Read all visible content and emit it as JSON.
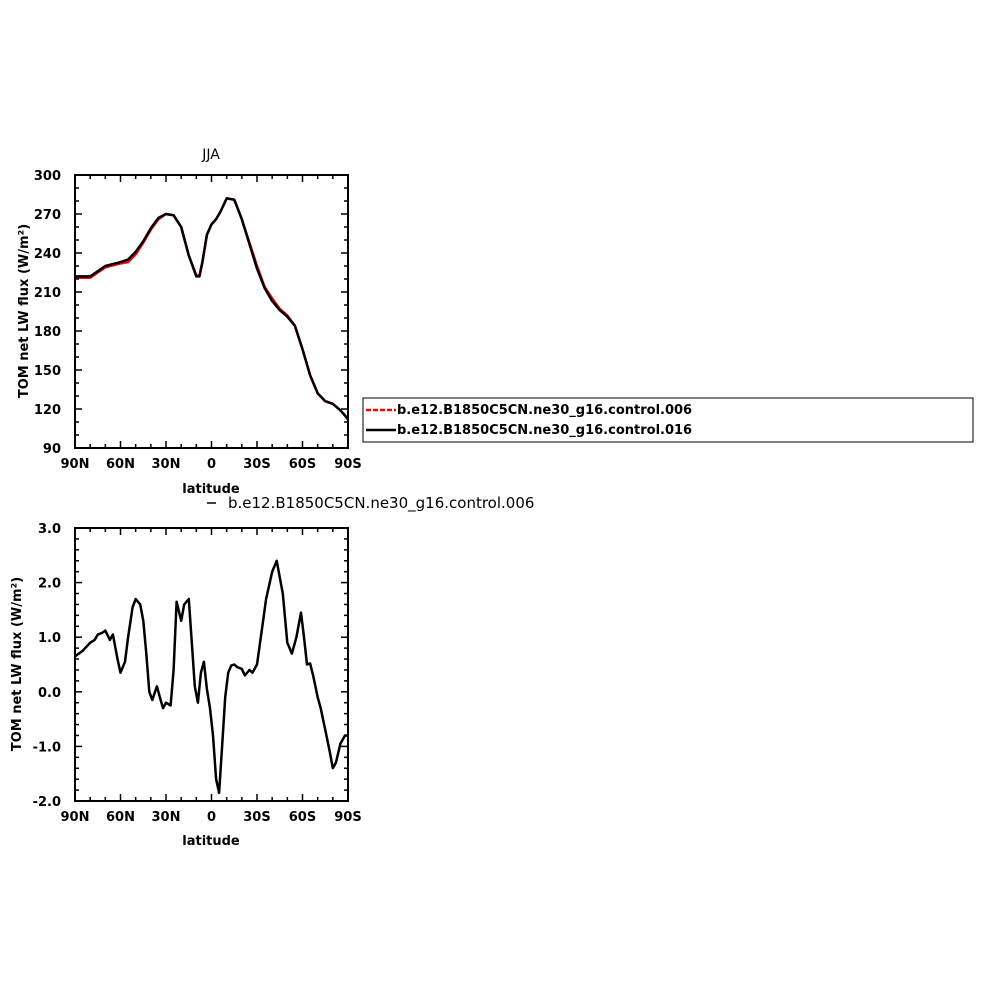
{
  "chart_data": [
    {
      "type": "line",
      "title": "JJA",
      "xlabel": "latitude",
      "ylabel": "TOM net LW flux (W/m²)",
      "xticks": [
        "90N",
        "60N",
        "30N",
        "0",
        "30S",
        "60S",
        "90S"
      ],
      "yticks": [
        "90",
        "120",
        "150",
        "180",
        "210",
        "240",
        "270",
        "300"
      ],
      "xlim": [
        90,
        -90
      ],
      "ylim": [
        90,
        300
      ],
      "legend_position": "right",
      "colors": {
        "series0": "#ff0000",
        "series1": "#000000"
      },
      "series": [
        {
          "name": "b.e12.B1850C5CN.ne30_g16.control.006",
          "x": [
            90,
            80,
            75,
            70,
            60,
            55,
            50,
            45,
            40,
            35,
            30,
            25,
            20,
            15,
            10,
            8,
            6,
            3,
            0,
            -3,
            -6,
            -10,
            -15,
            -20,
            -25,
            -30,
            -35,
            -40,
            -45,
            -50,
            -55,
            -60,
            -65,
            -70,
            -75,
            -80,
            -85,
            -88,
            -90
          ],
          "y": [
            221,
            221,
            225,
            229,
            232,
            233,
            239,
            248,
            258,
            266,
            270,
            269,
            260,
            238,
            223,
            222,
            233,
            254,
            262,
            266,
            272,
            282,
            281,
            266,
            248,
            230,
            214,
            205,
            197,
            192,
            184,
            166,
            146,
            132,
            126,
            124,
            119,
            115,
            112
          ]
        },
        {
          "name": "b.e12.B1850C5CN.ne30_g16.control.016",
          "x": [
            90,
            80,
            75,
            70,
            60,
            55,
            50,
            45,
            40,
            35,
            30,
            25,
            20,
            15,
            10,
            8,
            6,
            3,
            0,
            -3,
            -6,
            -10,
            -15,
            -20,
            -25,
            -30,
            -35,
            -40,
            -45,
            -50,
            -55,
            -60,
            -65,
            -70,
            -75,
            -80,
            -85,
            -88,
            -90
          ],
          "y": [
            222,
            222,
            226,
            230,
            233,
            235,
            241,
            249,
            259,
            267,
            270,
            269,
            260,
            238,
            222,
            222,
            233,
            254,
            262,
            266,
            272,
            282,
            281,
            266,
            247,
            228,
            213,
            203,
            196,
            191,
            184,
            166,
            146,
            132,
            126,
            124,
            119,
            115,
            112
          ]
        }
      ]
    },
    {
      "type": "line",
      "subtitle": "b.e12.B1850C5CN.ne30_g16.control.006",
      "xlabel": "latitude",
      "ylabel": "TOM net LW flux (W/m²)",
      "xticks": [
        "90N",
        "60N",
        "30N",
        "0",
        "30S",
        "60S",
        "90S"
      ],
      "yticks": [
        "-2.0",
        "-1.0",
        "0.0",
        "1.0",
        "2.0",
        "3.0"
      ],
      "xlim": [
        90,
        -90
      ],
      "ylim": [
        -2,
        3
      ],
      "colors": {
        "series0": "#000000"
      },
      "series": [
        {
          "x": [
            90,
            85,
            80,
            77,
            75,
            72,
            70,
            67,
            65,
            62,
            60,
            57,
            55,
            52,
            50,
            47,
            45,
            43,
            41,
            39,
            36,
            34,
            32,
            30,
            27,
            25,
            23,
            20,
            18,
            15,
            13,
            11,
            9,
            7,
            5,
            3,
            1,
            -1,
            -3,
            -5,
            -7,
            -9,
            -11,
            -13,
            -15,
            -17,
            -20,
            -22,
            -25,
            -27,
            -30,
            -33,
            -36,
            -40,
            -43,
            -47,
            -50,
            -53,
            -56,
            -59,
            -61,
            -63,
            -65,
            -67,
            -70,
            -72,
            -75,
            -78,
            -80,
            -82,
            -85,
            -88,
            -90
          ],
          "y": [
            0.65,
            0.75,
            0.9,
            0.95,
            1.05,
            1.08,
            1.12,
            0.95,
            1.05,
            0.6,
            0.35,
            0.55,
            1.0,
            1.55,
            1.7,
            1.6,
            1.3,
            0.7,
            0.0,
            -0.15,
            0.1,
            -0.1,
            -0.3,
            -0.2,
            -0.25,
            0.4,
            1.65,
            1.3,
            1.6,
            1.7,
            0.9,
            0.1,
            -0.2,
            0.35,
            0.55,
            0.05,
            -0.3,
            -0.8,
            -1.6,
            -1.85,
            -1.0,
            -0.1,
            0.35,
            0.48,
            0.5,
            0.45,
            0.42,
            0.3,
            0.4,
            0.35,
            0.5,
            1.1,
            1.7,
            2.2,
            2.4,
            1.8,
            0.9,
            0.7,
            1.0,
            1.45,
            1.0,
            0.5,
            0.52,
            0.3,
            -0.1,
            -0.3,
            -0.7,
            -1.1,
            -1.4,
            -1.3,
            -0.95,
            -0.8,
            -0.8
          ]
        }
      ]
    }
  ]
}
